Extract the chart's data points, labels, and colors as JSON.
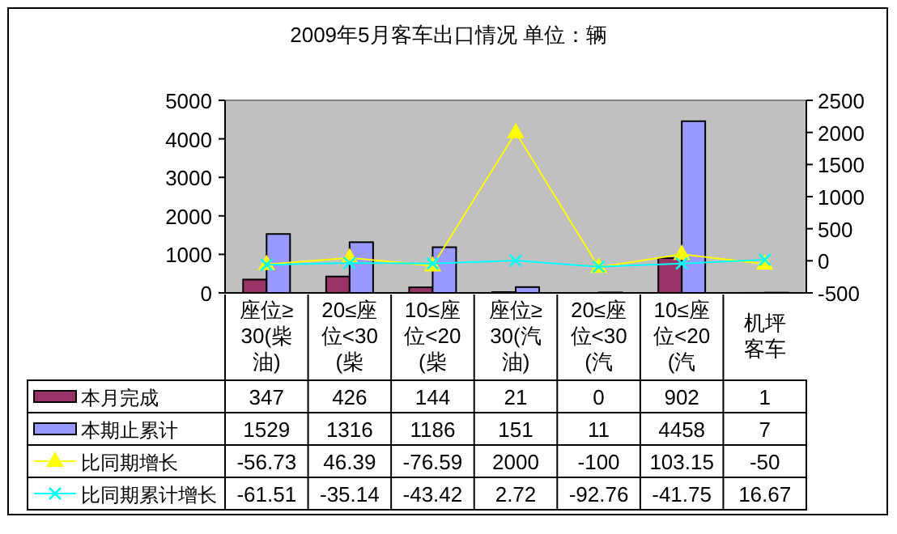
{
  "chart_data": {
    "type": "bar",
    "title": "2009年5月客车出口情况 单位：辆",
    "categories": [
      "座位≥30(柴油)",
      "20≤座位<30(柴",
      "10≤座位<20(柴",
      "座位≥30(汽油)",
      "20≤座位<30(汽",
      "10≤座位<20(汽",
      "机坪客车"
    ],
    "series": [
      {
        "name": "本月完成",
        "color": "#993366",
        "values": [
          347,
          426,
          144,
          21,
          0,
          902,
          1
        ]
      },
      {
        "name": "本期止累计",
        "color": "#9999ff",
        "values": [
          1529,
          1316,
          1186,
          151,
          11,
          4458,
          7
        ]
      },
      {
        "name": "比同期增长",
        "type": "line",
        "axis": "y2",
        "marker": "triangle",
        "color": "#ffff00",
        "values": [
          -56.73,
          46.39,
          -76.59,
          2000,
          -100,
          103.15,
          -50
        ]
      },
      {
        "name": "比同期累计增长",
        "type": "line",
        "axis": "y2",
        "marker": "cross",
        "color": "#00ffff",
        "values": [
          -61.51,
          -35.14,
          -43.42,
          2.72,
          -92.76,
          -41.75,
          16.67
        ]
      }
    ],
    "ylim": [
      0,
      5000
    ],
    "yticks": [
      0,
      1000,
      2000,
      3000,
      4000,
      5000
    ],
    "y2lim": [
      -500,
      2500
    ],
    "y2ticks": [
      -500,
      0,
      500,
      1000,
      1500,
      2000,
      2500
    ],
    "data_labels": true,
    "legend": "bottom",
    "grid": false
  }
}
